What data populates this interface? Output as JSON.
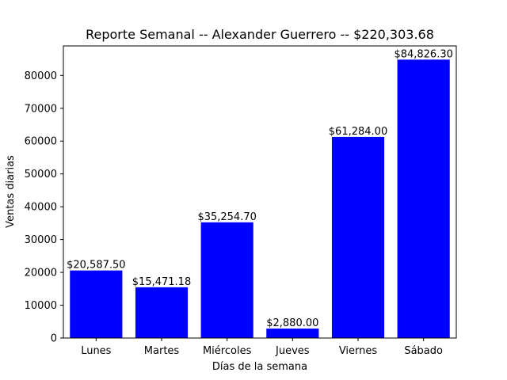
{
  "chart_data": {
    "type": "bar",
    "title": "Reporte Semanal -- Alexander Guerrero  -- $220,303.68",
    "xlabel": "Días de la semana",
    "ylabel": "Ventas diarias",
    "categories": [
      "Lunes",
      "Martes",
      "Miércoles",
      "Jueves",
      "Viernes",
      "Sábado"
    ],
    "values": [
      20587.5,
      15471.18,
      35254.7,
      2880.0,
      61284.0,
      84826.3
    ],
    "data_labels": [
      "$20,587.50",
      "$15,471.18",
      "$35,254.70",
      "$2,880.00",
      "$61,284.00",
      "$84,826.30"
    ],
    "ylim": [
      0,
      89000
    ],
    "yticks": [
      0,
      10000,
      20000,
      30000,
      40000,
      50000,
      60000,
      70000,
      80000
    ],
    "bar_color": "#0000ff",
    "grid": false,
    "legend": false
  }
}
